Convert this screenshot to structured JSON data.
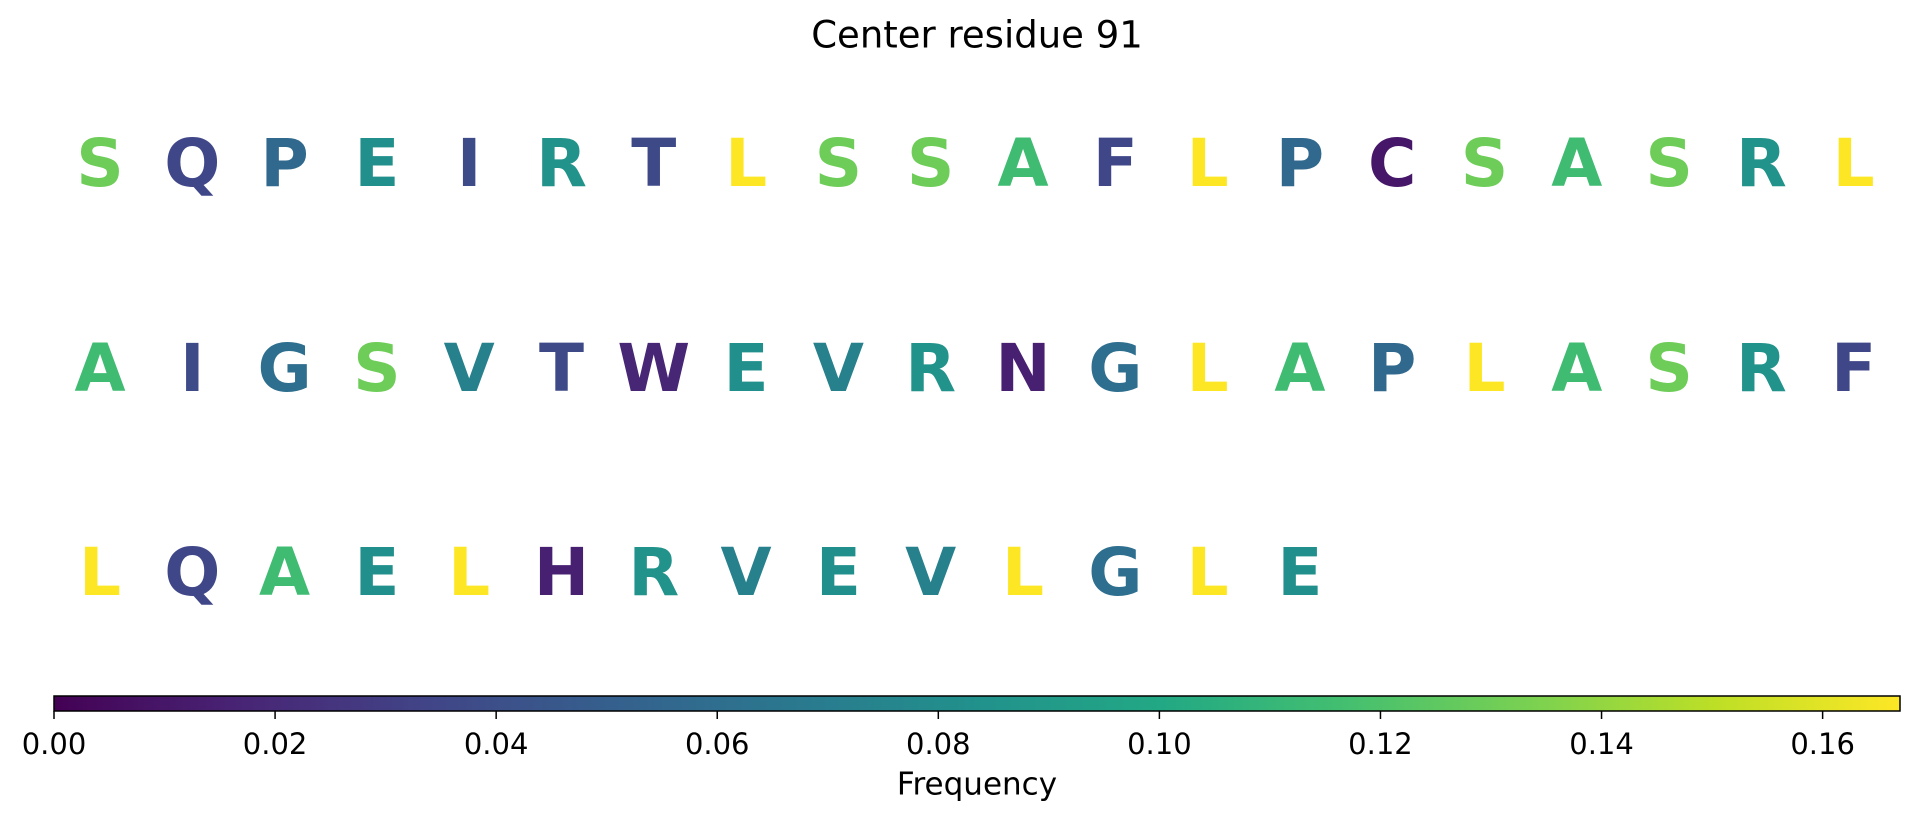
{
  "chart_data": {
    "type": "heatmap",
    "title": "Center residue 91",
    "sequence_rows": [
      [
        "S",
        "Q",
        "P",
        "E",
        "I",
        "R",
        "T",
        "L",
        "S",
        "S",
        "A",
        "F",
        "L",
        "P",
        "C",
        "S",
        "A",
        "S",
        "R",
        "L"
      ],
      [
        "A",
        "I",
        "G",
        "S",
        "V",
        "T",
        "W",
        "E",
        "V",
        "R",
        "N",
        "G",
        "L",
        "A",
        "P",
        "L",
        "A",
        "S",
        "R",
        "F"
      ],
      [
        "L",
        "Q",
        "A",
        "E",
        "L",
        "H",
        "R",
        "V",
        "E",
        "V",
        "L",
        "G",
        "L",
        "E"
      ]
    ],
    "frequencies": {
      "C": 0.01,
      "H": 0.015,
      "N": 0.015,
      "W": 0.018,
      "F": 0.035,
      "Q": 0.035,
      "T": 0.037,
      "I": 0.038,
      "P": 0.057,
      "G": 0.06,
      "V": 0.073,
      "E": 0.083,
      "R": 0.085,
      "A": 0.115,
      "S": 0.13,
      "L": 0.167
    },
    "colormap": "viridis",
    "colorbar": {
      "label": "Frequency",
      "range": [
        0.0,
        0.167
      ],
      "ticks": [
        0.0,
        0.02,
        0.04,
        0.06,
        0.08,
        0.1,
        0.12,
        0.14,
        0.16
      ],
      "tick_labels": [
        "0.00",
        "0.02",
        "0.04",
        "0.06",
        "0.08",
        "0.10",
        "0.12",
        "0.14",
        "0.16"
      ],
      "orientation": "horizontal"
    }
  }
}
